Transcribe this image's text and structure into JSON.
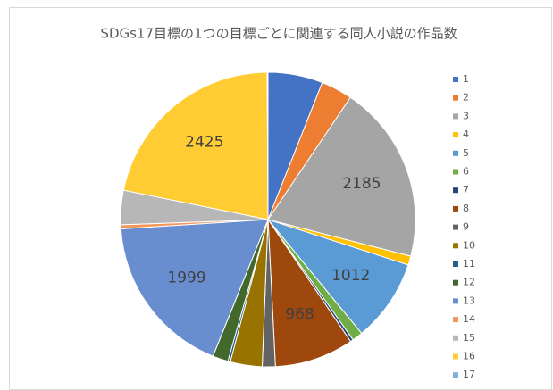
{
  "chart_data": {
    "type": "pie",
    "title": "SDGs17目標の1つの目標ごとに関連する同人小説の作品数",
    "categories": [
      "1",
      "2",
      "3",
      "4",
      "5",
      "6",
      "7",
      "8",
      "9",
      "10",
      "11",
      "12",
      "13",
      "14",
      "15",
      "16",
      "17"
    ],
    "values": [
      670,
      385,
      2185,
      110,
      1012,
      130,
      35,
      968,
      160,
      390,
      30,
      190,
      1999,
      50,
      420,
      2425,
      10
    ],
    "value_labels": [
      null,
      null,
      "2185",
      null,
      "1012",
      null,
      null,
      "968",
      null,
      null,
      null,
      null,
      "1999",
      null,
      null,
      "2425",
      null
    ],
    "colors": [
      "#4472c4",
      "#ed7d31",
      "#a5a5a5",
      "#ffc000",
      "#5b9bd5",
      "#70ad47",
      "#264478",
      "#9e480e",
      "#636363",
      "#997300",
      "#255e91",
      "#43682b",
      "#698ed0",
      "#f1975a",
      "#b7b7b7",
      "#ffcd33",
      "#7cafdd"
    ],
    "legend": "right"
  }
}
